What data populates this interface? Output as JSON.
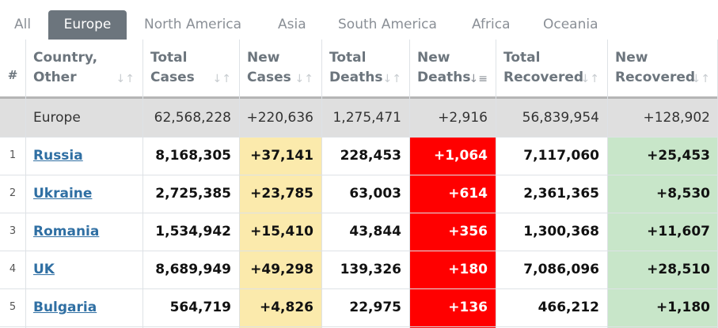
{
  "tabs": [
    "All",
    "Europe",
    "North America",
    "Asia",
    "South America",
    "Africa",
    "Oceania"
  ],
  "active_tab": "Europe",
  "table": {
    "headers": {
      "index": "#",
      "country": [
        "Country,",
        "Other"
      ],
      "total_cases": [
        "Total",
        "Cases"
      ],
      "new_cases": [
        "New",
        "Cases"
      ],
      "total_deaths": [
        "Total",
        "Deaths"
      ],
      "new_deaths": [
        "New",
        "Deaths"
      ],
      "total_recovered": [
        "Total",
        "Recovered"
      ],
      "new_recovered": [
        "New",
        "Recovered"
      ]
    },
    "summary": {
      "name": "Europe",
      "total_cases": "62,568,228",
      "new_cases": "+220,636",
      "total_deaths": "1,275,471",
      "new_deaths": "+2,916",
      "total_recovered": "56,839,954",
      "new_recovered": "+128,902"
    },
    "rows": [
      {
        "idx": "1",
        "country": "Russia",
        "total_cases": "8,168,305",
        "new_cases": "+37,141",
        "total_deaths": "228,453",
        "new_deaths": "+1,064",
        "total_recovered": "7,117,060",
        "new_recovered": "+25,453"
      },
      {
        "idx": "2",
        "country": "Ukraine",
        "total_cases": "2,725,385",
        "new_cases": "+23,785",
        "total_deaths": "63,003",
        "new_deaths": "+614",
        "total_recovered": "2,361,365",
        "new_recovered": "+8,530"
      },
      {
        "idx": "3",
        "country": "Romania",
        "total_cases": "1,534,942",
        "new_cases": "+15,410",
        "total_deaths": "43,844",
        "new_deaths": "+356",
        "total_recovered": "1,300,368",
        "new_recovered": "+11,607"
      },
      {
        "idx": "4",
        "country": "UK",
        "total_cases": "8,689,949",
        "new_cases": "+49,298",
        "total_deaths": "139,326",
        "new_deaths": "+180",
        "total_recovered": "7,086,096",
        "new_recovered": "+28,510"
      },
      {
        "idx": "5",
        "country": "Bulgaria",
        "total_cases": "564,719",
        "new_cases": "+4,826",
        "total_deaths": "22,975",
        "new_deaths": "+136",
        "total_recovered": "466,212",
        "new_recovered": "+1,180"
      }
    ]
  },
  "colors": {
    "active_tab_bg": "#6c757d",
    "new_cases_bg": "#fbeaac",
    "new_deaths_bg": "#ff0000",
    "new_recovered_bg": "#c8e6c9",
    "link": "#2f6fa3"
  },
  "icons": {
    "sort_default": "sort-arrows-icon",
    "sort_active": "sort-desc-icon"
  }
}
